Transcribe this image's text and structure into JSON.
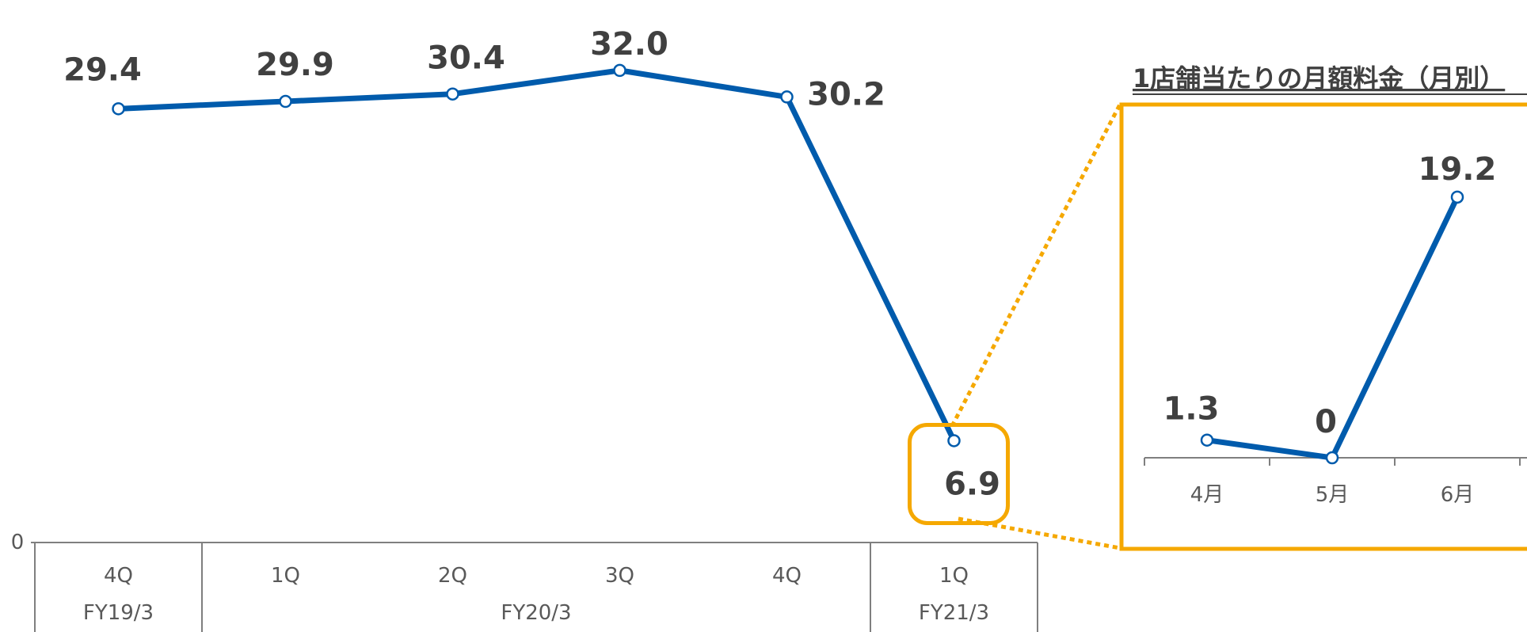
{
  "chart_data": [
    {
      "type": "line",
      "categories": [
        "4Q",
        "1Q",
        "2Q",
        "3Q",
        "4Q",
        "1Q"
      ],
      "groups": [
        {
          "label": "FY19/3",
          "count": 1
        },
        {
          "label": "FY20/3",
          "count": 4
        },
        {
          "label": "FY21/3",
          "count": 1
        }
      ],
      "values": [
        29.4,
        29.9,
        30.4,
        32.0,
        30.2,
        6.9
      ],
      "value_labels": [
        "29.4",
        "29.9",
        "30.4",
        "32.0",
        "30.2",
        "6.9"
      ],
      "ylim": [
        0,
        35
      ],
      "y_ticks": [
        "0"
      ],
      "highlight_index": 5,
      "grid": false,
      "color": "#005BAC",
      "highlight_color": "#F5A800"
    },
    {
      "type": "line",
      "title": "1店舗当たりの月額料金（月別）",
      "categories": [
        "4月",
        "5月",
        "6月"
      ],
      "values": [
        1.3,
        0,
        19.2
      ],
      "value_labels": [
        "1.3",
        "0",
        "19.2"
      ],
      "ylim": [
        0,
        21
      ],
      "grid": false,
      "color": "#005BAC",
      "frame_color": "#F5A800"
    }
  ]
}
